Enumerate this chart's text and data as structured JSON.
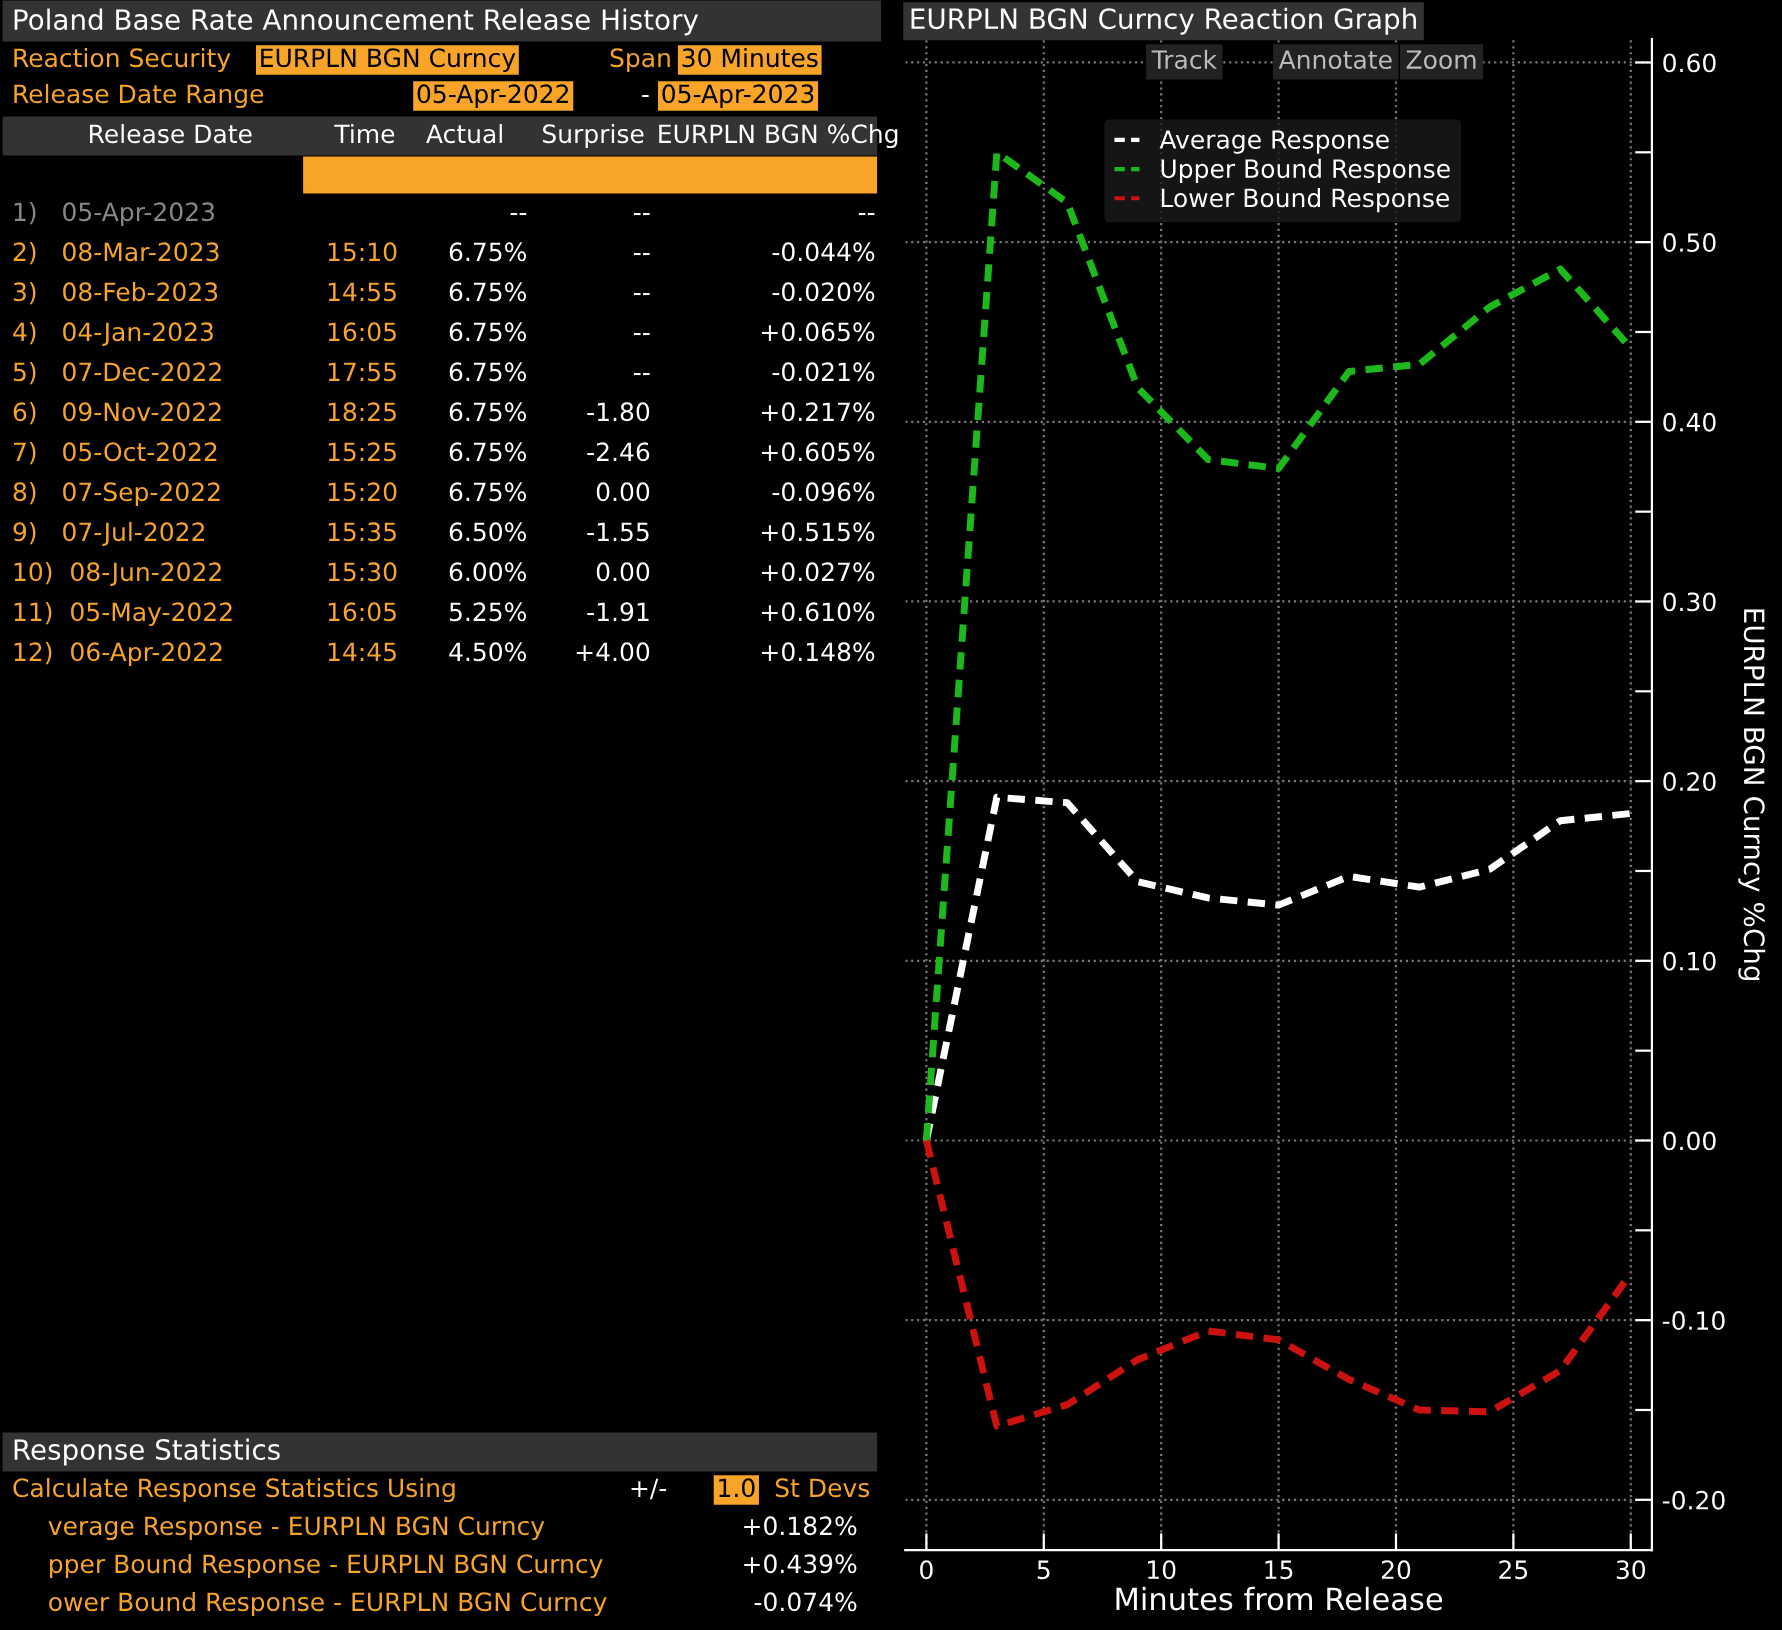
{
  "chart_data": [
    {
      "type": "other",
      "title": "Poland Base Rate Announcement Release History",
      "annotations": [
        "Reaction Security",
        "EURPLN BGN Curncy",
        "Span",
        "30 Minutes",
        "Release Date Range",
        "05-Apr-2022",
        "-",
        "05-Apr-2023",
        "Release Date",
        "Time",
        "Actual",
        "Surprise",
        "EURPLN BGN %Chg",
        "1)   05-Apr-2023",
        null,
        "--",
        "--",
        "--",
        "2)   08-Mar-2023",
        "15:10",
        "6.75%",
        "--",
        "-0.044%",
        "3)   08-Feb-2023",
        "14:55",
        "6.75%",
        "--",
        "-0.020%",
        "4)   04-Jan-2023",
        "16:05",
        "6.75%",
        "--",
        "+0.065%",
        "5)   07-Dec-2022",
        "17:55",
        "6.75%",
        "--",
        "-0.021%",
        "6)   09-Nov-2022",
        "18:25",
        "6.75%",
        "-1.80",
        "+0.217%",
        "7)   05-Oct-2022",
        "15:25",
        "6.75%",
        "-2.46",
        "+0.605%",
        "8)   07-Sep-2022",
        "15:20",
        "6.75%",
        "0.00",
        "-0.096%",
        "9)   07-Jul-2022",
        "15:35",
        "6.50%",
        "-1.55",
        "+0.515%",
        "10)  08-Jun-2022",
        "15:30",
        "6.00%",
        "0.00",
        "+0.027%",
        "11)  05-May-2022",
        "16:05",
        "5.25%",
        "-1.91",
        "+0.610%",
        "12)  06-Apr-2022",
        "14:45",
        "4.50%",
        "+4.00",
        "+0.148%",
        "Response Statistics",
        "Calculate Response Statistics Using",
        "+/-",
        "1.0",
        "St Devs",
        "verage Response - EURPLN BGN Curncy",
        "+0.182%",
        "pper Bound Response - EURPLN BGN Curncy",
        "+0.439%",
        "ower Bound Response - EURPLN BGN Curncy",
        "-0.074%"
      ]
    },
    {
      "type": "line",
      "title": "EURPLN BGN Curncy Reaction Graph",
      "annotations": [
        "Track",
        "Annotate",
        "Zoom"
      ],
      "xlabel": "Minutes from Release",
      "ylabel": "EURPLN BGN Curncy %Chg",
      "x": [
        0,
        3,
        6,
        9,
        12,
        15,
        18,
        21,
        24,
        27,
        30
      ],
      "series": [
        {
          "name": "Average Response",
          "color": "#ffffff",
          "values": [
            0,
            0.191,
            0.188,
            0.144,
            0.135,
            0.131,
            0.147,
            0.141,
            0.151,
            0.178,
            0.182
          ]
        },
        {
          "name": "Upper Bound Response",
          "color": "#1cb81c",
          "values": [
            0,
            0.55,
            0.522,
            0.419,
            0.379,
            0.374,
            0.428,
            0.432,
            0.464,
            0.485,
            0.441
          ]
        },
        {
          "name": "Lower Bound Response",
          "color": "#cc1111",
          "values": [
            0,
            -0.159,
            -0.147,
            -0.122,
            -0.106,
            -0.111,
            -0.133,
            -0.15,
            -0.151,
            -0.128,
            -0.074
          ]
        }
      ],
      "xlim": [
        -0.9,
        30.9
      ],
      "xticks": [
        0,
        5,
        10,
        15,
        20,
        25,
        30
      ],
      "ylim": [
        -0.228,
        0.613
      ],
      "yticks": [
        {
          "value": -0.2,
          "label": "-0.20"
        },
        {
          "value": -0.15,
          "label": null
        },
        {
          "value": -0.1,
          "label": "-0.10"
        },
        {
          "value": -0.05,
          "label": null
        },
        {
          "value": 0,
          "label": "0.00"
        },
        {
          "value": 0.05,
          "label": null
        },
        {
          "value": 0.1,
          "label": "0.10"
        },
        {
          "value": 0.15,
          "label": null
        },
        {
          "value": 0.2,
          "label": "0.20"
        },
        {
          "value": 0.25,
          "label": null
        },
        {
          "value": 0.3,
          "label": "0.30"
        },
        {
          "value": 0.35,
          "label": null
        },
        {
          "value": 0.4,
          "label": "0.40"
        },
        {
          "value": 0.45,
          "label": null
        },
        {
          "value": 0.5,
          "label": "0.50"
        },
        {
          "value": 0.55,
          "label": null
        },
        {
          "value": 0.6,
          "label": "0.60"
        }
      ],
      "grid": true,
      "legend": "top left",
      "line_style": "dashed",
      "marker": "none"
    }
  ]
}
